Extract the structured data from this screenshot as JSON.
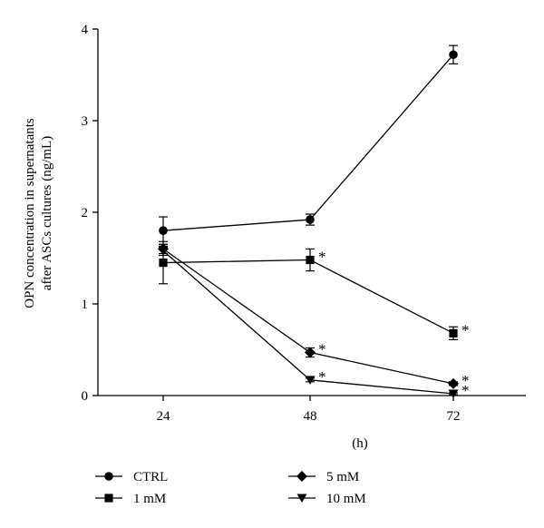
{
  "chart_data": {
    "type": "line",
    "title": "",
    "xlabel": "(h)",
    "ylabel_lines": [
      "OPN concentration in supernatants",
      "after ASCs cultures (ng/mL)"
    ],
    "x": [
      24,
      48,
      72
    ],
    "x_ticks": [
      "24",
      "48",
      "72"
    ],
    "ylim": [
      0,
      4
    ],
    "y_ticks": [
      "0",
      "1",
      "2",
      "3",
      "4"
    ],
    "grid": false,
    "legend_position": "bottom",
    "significance_marker": "*",
    "series": [
      {
        "name": "CTRL",
        "marker": "circle",
        "values": [
          1.8,
          1.92,
          3.72
        ],
        "errors": [
          0.15,
          0.06,
          0.1
        ],
        "significant": [
          false,
          false,
          false
        ]
      },
      {
        "name": "1 mM",
        "marker": "square",
        "values": [
          1.45,
          1.48,
          0.68
        ],
        "errors": [
          0.23,
          0.12,
          0.07
        ],
        "significant": [
          false,
          true,
          true
        ]
      },
      {
        "name": "5 mM",
        "marker": "diamond",
        "values": [
          1.6,
          0.47,
          0.13
        ],
        "errors": [
          0.05,
          0.05,
          0.02
        ],
        "significant": [
          false,
          true,
          true
        ]
      },
      {
        "name": "10 mM",
        "marker": "triangle-down",
        "values": [
          1.58,
          0.17,
          0.02
        ],
        "errors": [
          0.05,
          0.02,
          0.01
        ],
        "significant": [
          false,
          true,
          true
        ]
      }
    ]
  }
}
